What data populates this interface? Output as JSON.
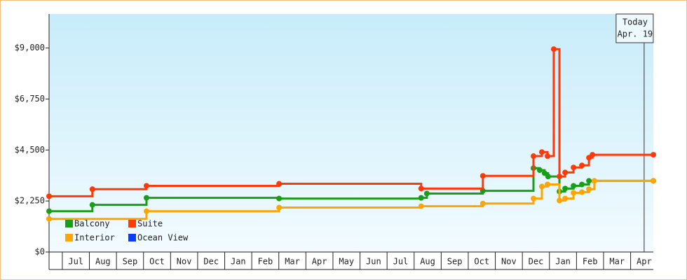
{
  "chart_data": {
    "type": "step",
    "xlim": [
      -0.49,
      21.84
    ],
    "xticks": [
      {
        "value": 0.5,
        "label": "Jul"
      },
      {
        "value": 1.5,
        "label": "Aug"
      },
      {
        "value": 2.5,
        "label": "Sep"
      },
      {
        "value": 3.5,
        "label": "Oct"
      },
      {
        "value": 4.5,
        "label": "Nov"
      },
      {
        "value": 5.5,
        "label": "Dec"
      },
      {
        "value": 6.5,
        "label": "Jan"
      },
      {
        "value": 7.5,
        "label": "Feb"
      },
      {
        "value": 8.5,
        "label": "Mar"
      },
      {
        "value": 9.5,
        "label": "Apr"
      },
      {
        "value": 10.5,
        "label": "May"
      },
      {
        "value": 11.5,
        "label": "Jun"
      },
      {
        "value": 12.5,
        "label": "Jul"
      },
      {
        "value": 13.5,
        "label": "Aug"
      },
      {
        "value": 14.5,
        "label": "Sep"
      },
      {
        "value": 15.5,
        "label": "Oct"
      },
      {
        "value": 16.5,
        "label": "Nov"
      },
      {
        "value": 17.5,
        "label": "Dec"
      },
      {
        "value": 18.5,
        "label": "Jan"
      },
      {
        "value": 19.5,
        "label": "Feb"
      },
      {
        "value": 20.5,
        "label": "Mar"
      },
      {
        "value": 21.5,
        "label": "Apr"
      }
    ],
    "ylim": [
      0,
      10500
    ],
    "yticks": [
      {
        "value": 0,
        "label": "$0"
      },
      {
        "value": 2250,
        "label": "$2,250"
      },
      {
        "value": 4500,
        "label": "$4,500"
      },
      {
        "value": 6750,
        "label": "$6,750"
      },
      {
        "value": 9000,
        "label": "$9,000"
      }
    ],
    "annotation": {
      "x": 21.5,
      "lines": [
        "Today",
        "Apr. 19"
      ]
    },
    "series": [
      {
        "name": "Balcony",
        "color": "#1a9e1a",
        "x": [
          -0.49,
          1.11,
          3.11,
          8.01,
          13.26,
          13.47,
          15.54,
          17.41,
          17.64,
          17.82,
          17.95,
          18.37,
          18.58,
          18.89,
          19.2,
          19.46,
          21.84
        ],
        "values": [
          1800,
          2080,
          2390,
          2360,
          2390,
          2580,
          2700,
          3700,
          3610,
          3480,
          3330,
          2670,
          2800,
          2920,
          2980,
          3140,
          3140
        ]
      },
      {
        "name": "Suite",
        "color": "#ff3a0a",
        "x": [
          -0.49,
          1.11,
          3.11,
          8.01,
          13.26,
          15.54,
          17.41,
          17.72,
          17.93,
          18.16,
          18.37,
          18.58,
          18.89,
          19.2,
          19.46,
          19.59,
          21.84
        ],
        "values": [
          2460,
          2770,
          2920,
          3010,
          2800,
          3360,
          4230,
          4410,
          4230,
          8950,
          3330,
          3510,
          3730,
          3820,
          4160,
          4290,
          4290
        ]
      },
      {
        "name": "Interior",
        "color": "#ffa500",
        "x": [
          -0.49,
          3.11,
          8.01,
          13.26,
          15.54,
          17.41,
          17.72,
          17.93,
          18.37,
          18.58,
          18.89,
          19.2,
          19.46,
          19.66,
          21.84
        ],
        "values": [
          1460,
          1800,
          1960,
          2020,
          2140,
          2360,
          2890,
          2980,
          2270,
          2360,
          2610,
          2640,
          2770,
          3140,
          3140
        ]
      },
      {
        "name": "Ocean View",
        "color": "#0a3cff",
        "x": [],
        "values": []
      }
    ]
  }
}
